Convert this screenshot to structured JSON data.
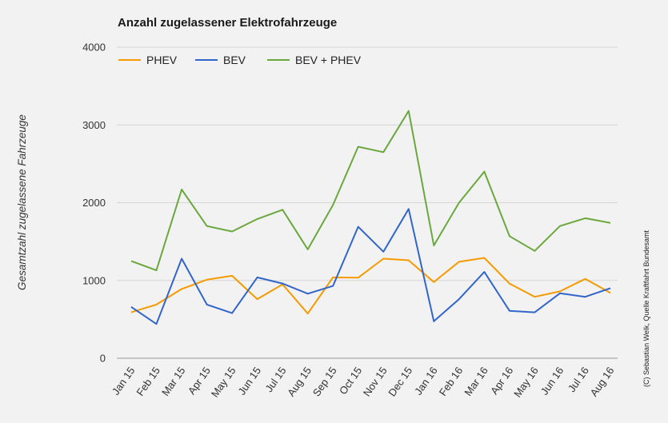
{
  "chart_data": {
    "type": "line",
    "title": "Anzahl zugelassener Elektrofahrzeuge",
    "xlabel": "",
    "ylabel": "Gesamtzahl zugelassene Fahrzeuge",
    "credit": "(C) Sebastian Welk, Quelle Kraftfahrt Bundesamt",
    "ylim": [
      0,
      4000
    ],
    "yticks": [
      "0",
      "1000",
      "2000",
      "3000",
      "4000"
    ],
    "grid": true,
    "legend_position": "top-left",
    "categories": [
      "Jan 15",
      "Feb 15",
      "Mar 15",
      "Apr 15",
      "May 15",
      "Jun 15",
      "Jul 15",
      "Aug 15",
      "Sep 15",
      "Oct 15",
      "Nov 15",
      "Dec 15",
      "Jan 16",
      "Feb 16",
      "Mar 16",
      "Apr 16",
      "May 16",
      "Jun 16",
      "Jul 16",
      "Aug 16"
    ],
    "series": [
      {
        "name": "PHEV",
        "color": "#f59b00",
        "values": [
          590,
          690,
          890,
          1010,
          1060,
          760,
          950,
          575,
          1040,
          1035,
          1280,
          1260,
          980,
          1240,
          1290,
          960,
          790,
          860,
          1020,
          840
        ]
      },
      {
        "name": "BEV",
        "color": "#3165c9",
        "values": [
          660,
          440,
          1280,
          690,
          580,
          1040,
          960,
          830,
          930,
          1690,
          1370,
          1920,
          475,
          760,
          1110,
          610,
          590,
          835,
          790,
          900
        ]
      },
      {
        "name": "BEV + PHEV",
        "color": "#6aa83e",
        "values": [
          1250,
          1130,
          2170,
          1700,
          1630,
          1790,
          1910,
          1400,
          1970,
          2720,
          2650,
          3180,
          1450,
          2000,
          2400,
          1570,
          1380,
          1700,
          1800,
          1740
        ]
      }
    ]
  }
}
